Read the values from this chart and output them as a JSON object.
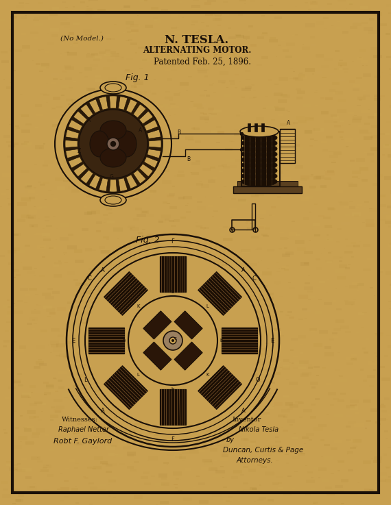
{
  "bg_color": "#C8A050",
  "border_color": "#1a1008",
  "ink_color": "#1a1008",
  "title1": "N. TESLA.",
  "title2": "ALTERNATING MOTOR.",
  "title3": "Patented Feb. 25, 1896.",
  "no_model": "(No Model.)",
  "fig1_label": "Fig. 1",
  "fig2_label": "Fig. 2",
  "witnesses_label": "Witnesses:",
  "witness1": "Raphael Netter",
  "witness2": "Robt F. Gaylord",
  "inventor_label": "Inventor",
  "inventor_name": "Nikola Tesla",
  "by_label": "by",
  "attorneys_firm": "Duncan, Curtis & Page",
  "attorneys_label": "Attorneys.",
  "fig_width": 5.7,
  "fig_height": 7.37,
  "dpi": 100
}
